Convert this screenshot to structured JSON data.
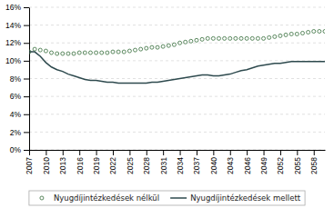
{
  "chart_data": {
    "type": "line",
    "x": [
      2007,
      2008,
      2009,
      2010,
      2011,
      2012,
      2013,
      2014,
      2015,
      2016,
      2017,
      2018,
      2019,
      2020,
      2021,
      2022,
      2023,
      2024,
      2025,
      2026,
      2027,
      2028,
      2029,
      2030,
      2031,
      2032,
      2033,
      2034,
      2035,
      2036,
      2037,
      2038,
      2039,
      2040,
      2041,
      2042,
      2043,
      2044,
      2045,
      2046,
      2047,
      2048,
      2049,
      2050,
      2051,
      2052,
      2053,
      2054,
      2055,
      2056,
      2057,
      2058,
      2059,
      2060
    ],
    "series": [
      {
        "name": "Nyugdíjintézkedések nélkül",
        "color": "#4a7c4e",
        "marker": "circle",
        "line_style": "none",
        "values": [
          11.0,
          11.3,
          11.2,
          11.1,
          10.9,
          10.8,
          10.8,
          10.8,
          10.8,
          10.9,
          10.9,
          10.9,
          10.9,
          10.9,
          10.9,
          11.0,
          11.0,
          11.0,
          11.1,
          11.2,
          11.3,
          11.4,
          11.5,
          11.5,
          11.6,
          11.7,
          11.8,
          12.0,
          12.1,
          12.2,
          12.3,
          12.4,
          12.5,
          12.5,
          12.5,
          12.5,
          12.5,
          12.5,
          12.5,
          12.5,
          12.5,
          12.5,
          12.5,
          12.6,
          12.7,
          12.8,
          12.9,
          13.0,
          13.0,
          13.1,
          13.2,
          13.3,
          13.3,
          13.3
        ]
      },
      {
        "name": "Nyugdíjintézkedések mellett",
        "color": "#2e4a4e",
        "line_style": "solid",
        "values": [
          11.0,
          11.0,
          10.5,
          9.8,
          9.3,
          9.0,
          8.8,
          8.5,
          8.3,
          8.1,
          7.9,
          7.8,
          7.8,
          7.7,
          7.6,
          7.6,
          7.5,
          7.5,
          7.5,
          7.5,
          7.5,
          7.5,
          7.6,
          7.6,
          7.7,
          7.8,
          7.9,
          8.0,
          8.1,
          8.2,
          8.3,
          8.4,
          8.4,
          8.3,
          8.3,
          8.4,
          8.5,
          8.7,
          8.9,
          9.0,
          9.2,
          9.4,
          9.5,
          9.6,
          9.7,
          9.7,
          9.8,
          9.9,
          9.9,
          9.9,
          9.9,
          9.9,
          9.9,
          9.9
        ]
      }
    ],
    "xlim": [
      2007,
      2060
    ],
    "xticks": [
      2007,
      2010,
      2013,
      2016,
      2019,
      2022,
      2025,
      2028,
      2031,
      2034,
      2037,
      2040,
      2043,
      2046,
      2049,
      2052,
      2055,
      2058
    ],
    "ylim": [
      0,
      16
    ],
    "yticks": [
      {
        "value": 0,
        "label": "0%"
      },
      {
        "value": 2,
        "label": "2%"
      },
      {
        "value": 4,
        "label": "4%"
      },
      {
        "value": 6,
        "label": "6%"
      },
      {
        "value": 8,
        "label": "8%"
      },
      {
        "value": 10,
        "label": "10%"
      },
      {
        "value": 12,
        "label": "12%"
      },
      {
        "value": 14,
        "label": "14%"
      },
      {
        "value": 16,
        "label": "16%"
      }
    ],
    "grid": "y",
    "legend": "bottom"
  }
}
